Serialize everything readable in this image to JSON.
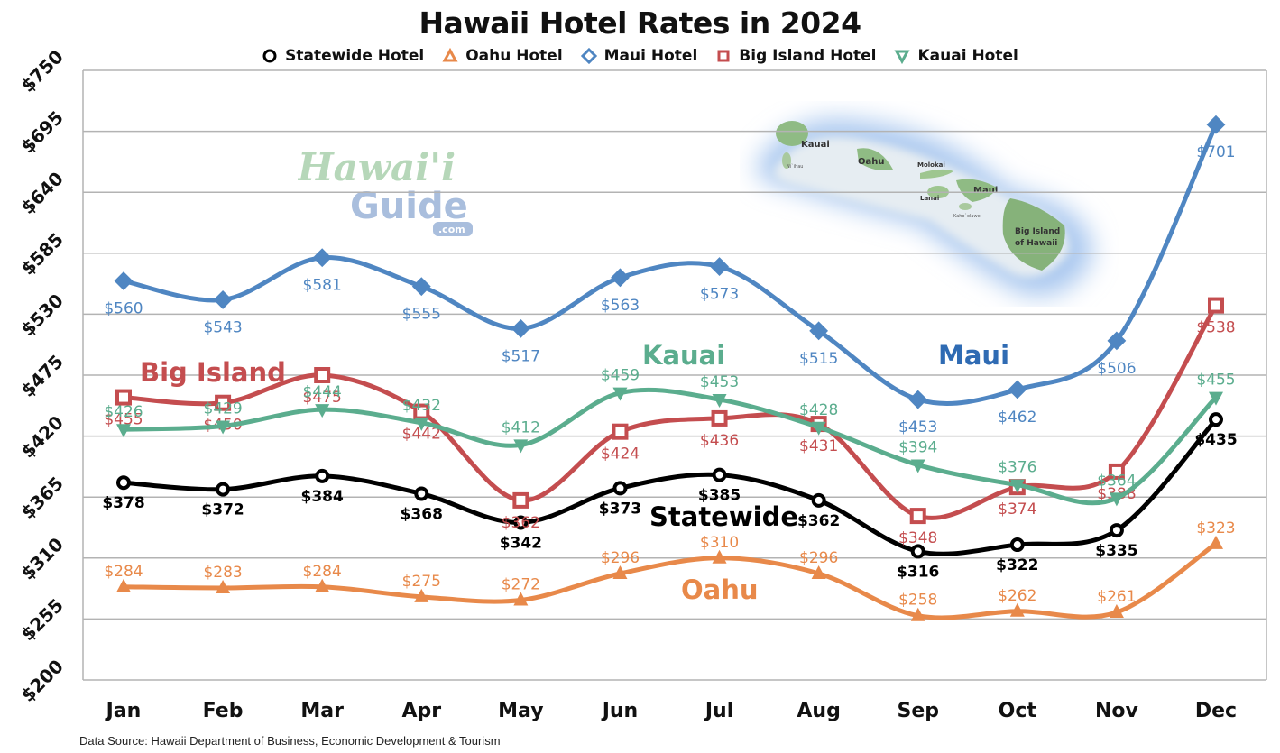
{
  "title": "Hawaii Hotel Rates in 2024",
  "source": "Data Source: Hawaii Department of Business, Economic Development & Tourism",
  "legend": [
    {
      "label": "Statewide Hotel",
      "color": "#000000",
      "marker": "circle"
    },
    {
      "label": "Oahu Hotel",
      "color": "#E8894A",
      "marker": "triangle-up"
    },
    {
      "label": "Maui Hotel",
      "color": "#4F86C2",
      "marker": "diamond"
    },
    {
      "label": "Big Island Hotel",
      "color": "#C44D4F",
      "marker": "square"
    },
    {
      "label": "Kauai Hotel",
      "color": "#5BAD8E",
      "marker": "triangle-down"
    }
  ],
  "annotations": {
    "big_island": "Big Island",
    "kauai": "Kauai",
    "maui": "Maui",
    "statewide": "Statewide",
    "oahu": "Oahu"
  },
  "map": {
    "labels": [
      "Kauai",
      "Ni`ihau",
      "Oahu",
      "Molokai",
      "Lanai",
      "Maui",
      "Kaho`olawe",
      "Big Island",
      "of Hawaii"
    ]
  },
  "logo": {
    "line1": "Hawai'i",
    "line2": "Guide",
    "line3": ".com"
  },
  "chart_data": {
    "type": "line",
    "title": "Hawaii Hotel Rates in 2024",
    "xlabel": "",
    "ylabel": "",
    "categories": [
      "Jan",
      "Feb",
      "Mar",
      "Apr",
      "May",
      "Jun",
      "Jul",
      "Aug",
      "Sep",
      "Oct",
      "Nov",
      "Dec"
    ],
    "yticks": [
      "$200",
      "$255",
      "$310",
      "$365",
      "$420",
      "$475",
      "$530",
      "$585",
      "$640",
      "$695",
      "$750"
    ],
    "ylim": [
      200,
      750
    ],
    "grid": true,
    "legend_position": "top",
    "series": [
      {
        "name": "Statewide Hotel",
        "color": "#000000",
        "values": [
          378,
          372,
          384,
          368,
          342,
          373,
          385,
          362,
          316,
          322,
          335,
          435
        ]
      },
      {
        "name": "Oahu Hotel",
        "color": "#E8894A",
        "values": [
          284,
          283,
          284,
          275,
          272,
          296,
          310,
          296,
          258,
          262,
          261,
          323
        ]
      },
      {
        "name": "Maui Hotel",
        "color": "#4F86C2",
        "values": [
          560,
          543,
          581,
          555,
          517,
          563,
          573,
          515,
          453,
          462,
          506,
          701
        ]
      },
      {
        "name": "Big Island Hotel",
        "color": "#C44D4F",
        "values": [
          455,
          450,
          475,
          442,
          362,
          424,
          436,
          431,
          348,
          374,
          388,
          538
        ]
      },
      {
        "name": "Kauai Hotel",
        "color": "#5BAD8E",
        "values": [
          426,
          429,
          444,
          432,
          412,
          459,
          453,
          428,
          394,
          376,
          364,
          455
        ]
      }
    ]
  }
}
